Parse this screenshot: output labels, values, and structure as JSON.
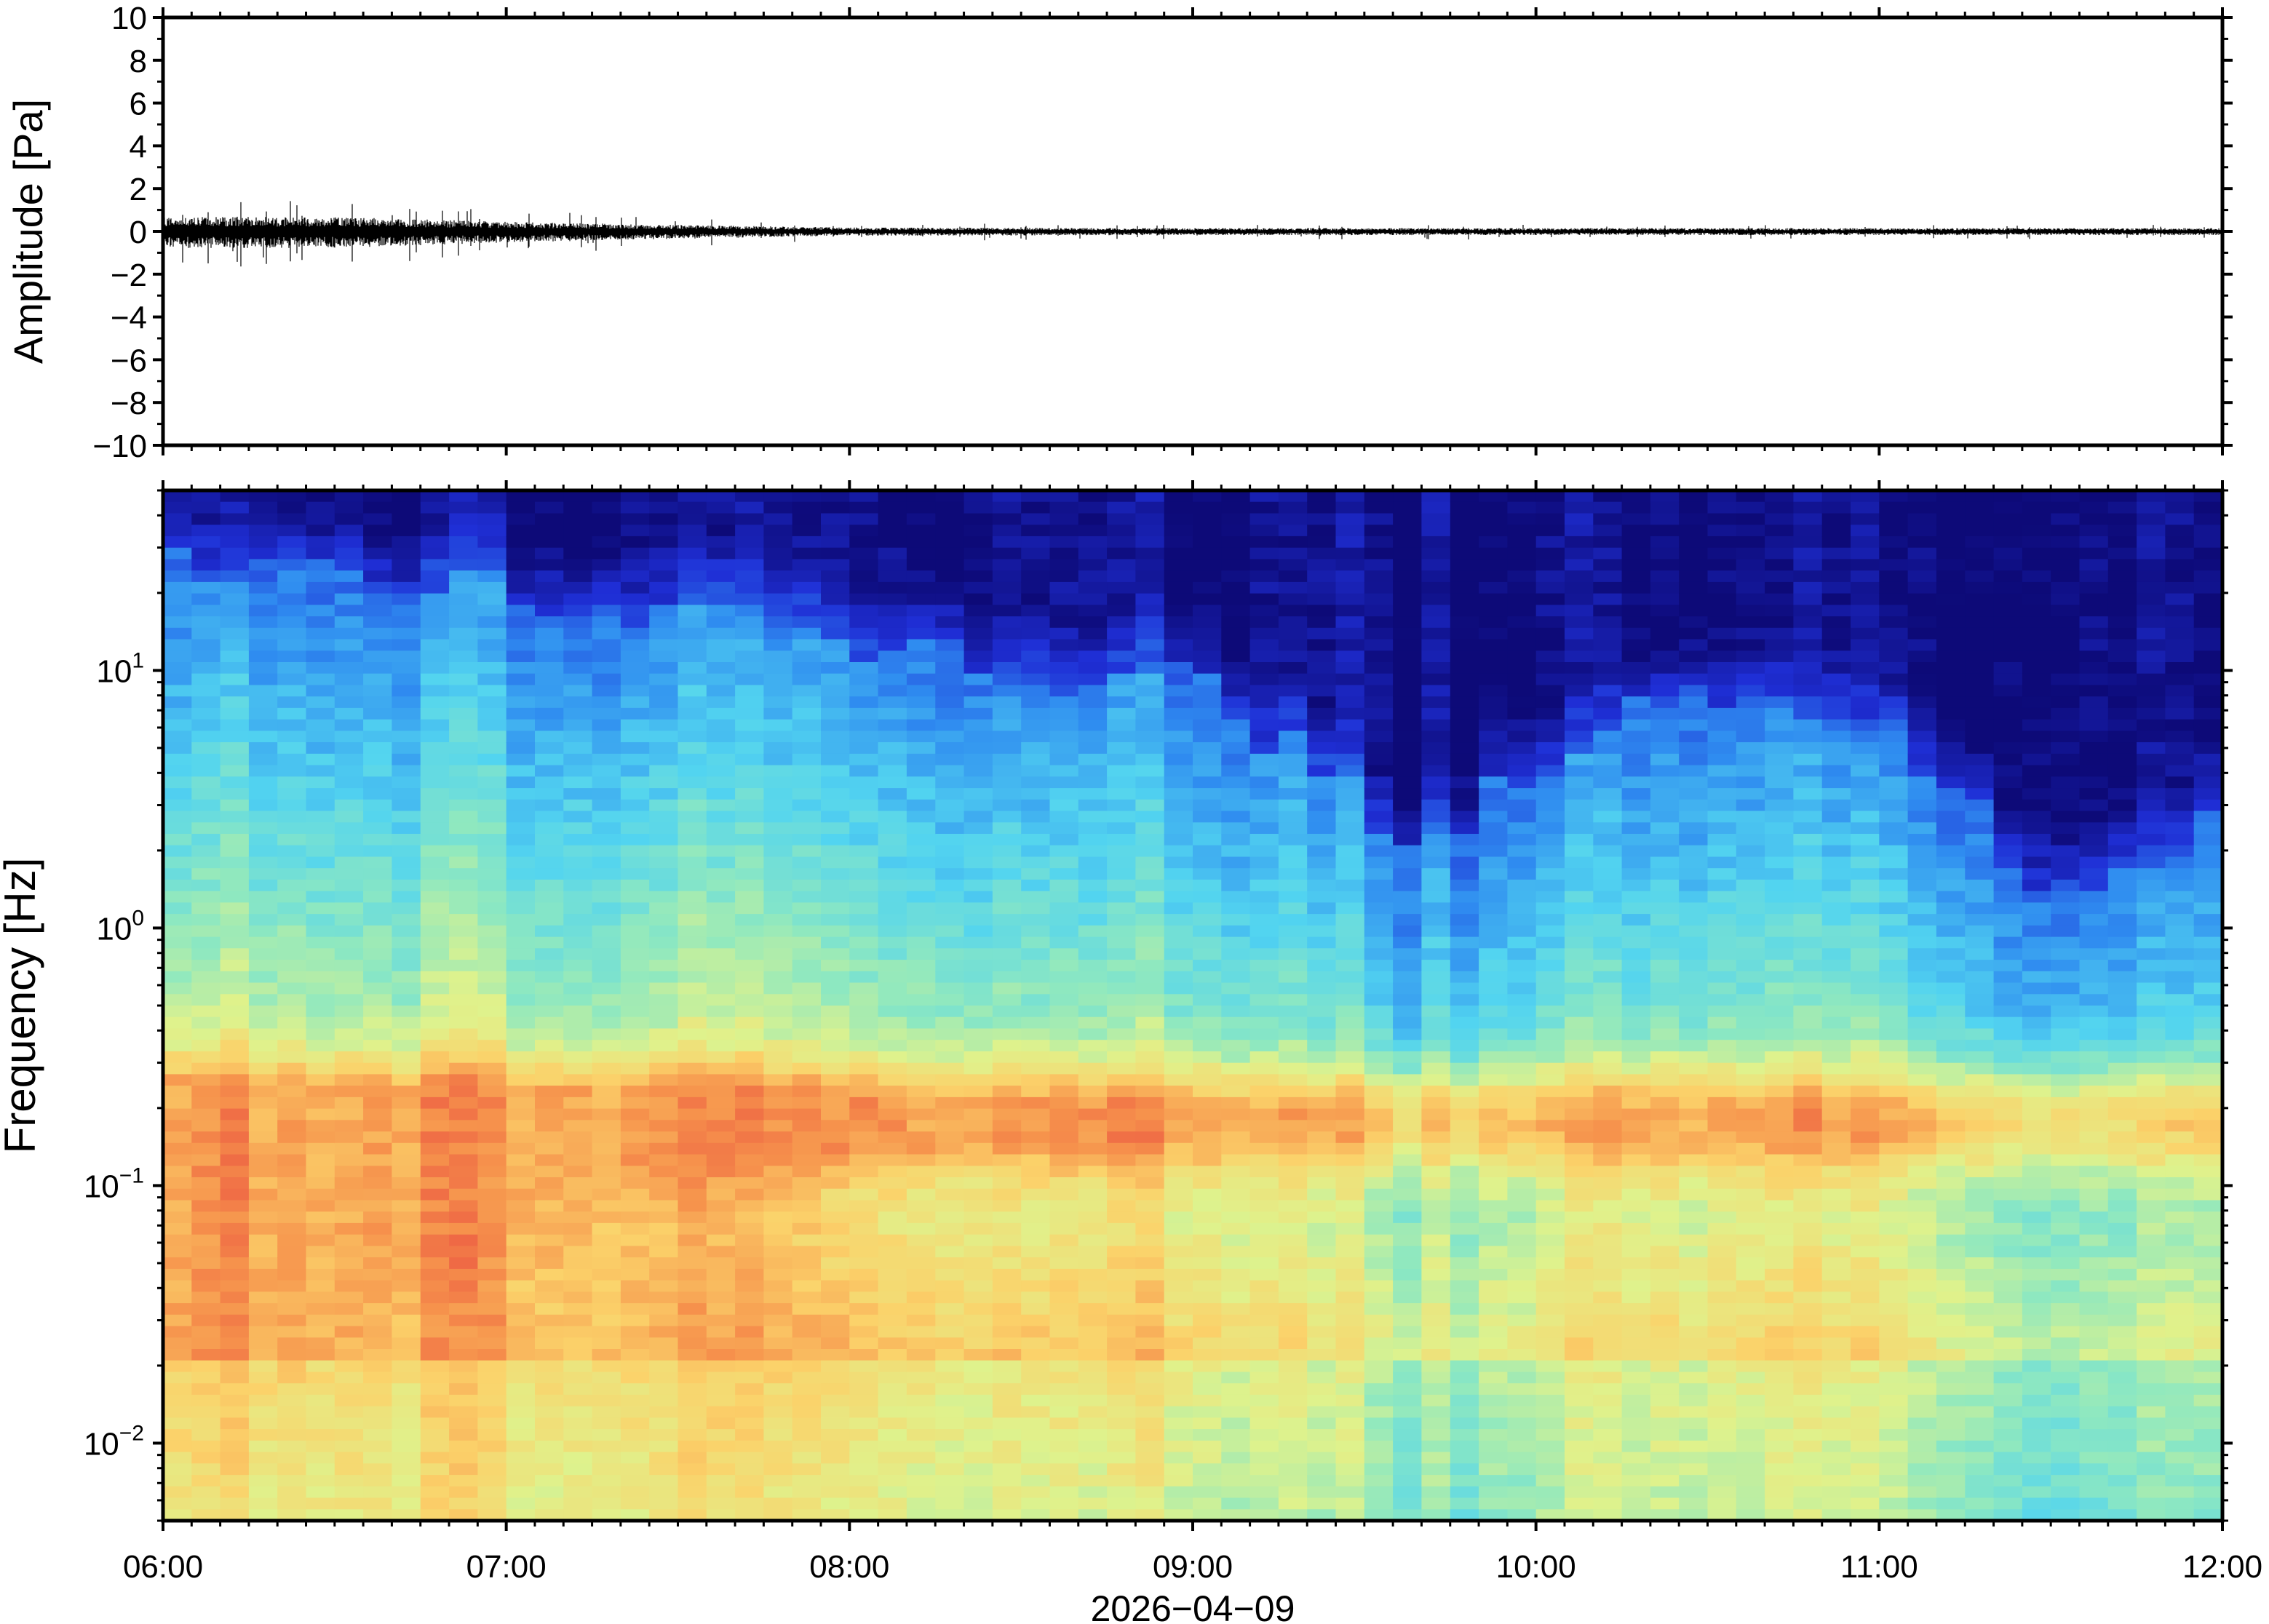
{
  "chart_data": [
    {
      "type": "line",
      "panel": "waveform",
      "ylabel": "Amplitude [Pa]",
      "ylim": [
        -10,
        10
      ],
      "yticks": [
        "10",
        "8",
        "6",
        "4",
        "2",
        "0",
        "−2",
        "−4",
        "−6",
        "−8",
        "−10"
      ],
      "series": [
        {
          "x": [
            "06:00",
            "06:30",
            "07:00",
            "07:30",
            "08:00",
            "09:00",
            "10:00",
            "11:00",
            "12:00"
          ],
          "envelope": [
            0.45,
            0.45,
            0.3,
            0.2,
            0.12,
            0.1,
            0.1,
            0.1,
            0.1
          ]
        }
      ]
    },
    {
      "type": "heatmap",
      "panel": "spectrogram",
      "ylabel": "Frequency [Hz]",
      "yscale": "log",
      "ylim": [
        0.005,
        50
      ],
      "yticks": [
        {
          "value": 10,
          "base": "10",
          "exp": "1"
        },
        {
          "value": 1,
          "base": "10",
          "exp": "0"
        },
        {
          "value": 0.1,
          "base": "10",
          "exp": "−1"
        },
        {
          "value": 0.01,
          "base": "10",
          "exp": "−2"
        }
      ],
      "colormap": [
        "#0d0a78",
        "#1f2fd6",
        "#2f8cf0",
        "#52d4f0",
        "#8ee8c0",
        "#dff28c",
        "#fbd26a",
        "#f6924c",
        "#e8443e"
      ],
      "upper_cutoff_hz": [
        {
          "t": "06:00",
          "hz": 25
        },
        {
          "t": "07:00",
          "hz": 22
        },
        {
          "t": "07:20",
          "hz": 18
        },
        {
          "t": "08:00",
          "hz": 12
        },
        {
          "t": "09:00",
          "hz": 9
        },
        {
          "t": "09:40",
          "hz": 2
        },
        {
          "t": "10:20",
          "hz": 8
        },
        {
          "t": "11:00",
          "hz": 6
        },
        {
          "t": "11:35",
          "hz": 1.2
        },
        {
          "t": "12:00",
          "hz": 3
        }
      ],
      "peak_band_hz": [
        0.15,
        0.22
      ]
    }
  ],
  "time_axis": {
    "ticks": [
      "06:00",
      "07:00",
      "08:00",
      "09:00",
      "10:00",
      "11:00",
      "12:00"
    ],
    "date_label": "2026−04−09"
  }
}
